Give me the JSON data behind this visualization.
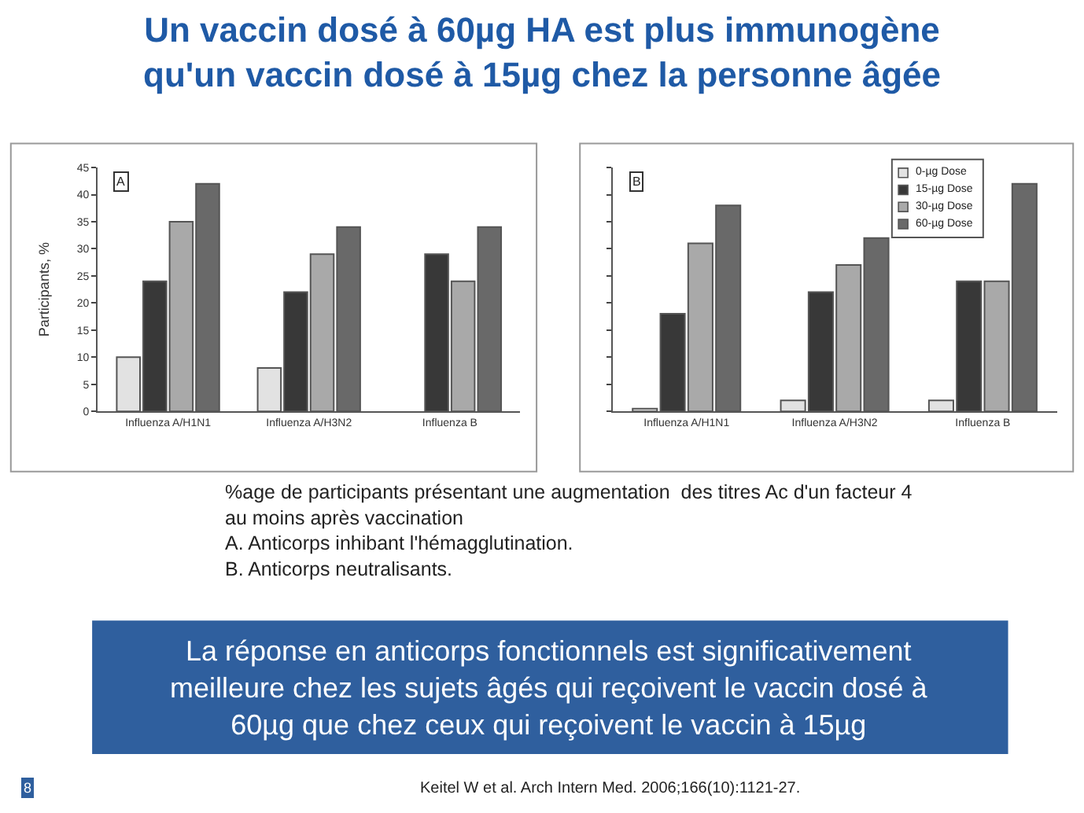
{
  "chart_data": [
    {
      "type": "bar",
      "title": "Un vaccin dosé à 60µg HA est plus immunogène\nqu'un vaccin dosé à 15µg chez la personne âgée",
      "ylabel": "Participants, %",
      "categories": [
        "Influenza A/H1N1",
        "Influenza A/H3N2",
        "Influenza B"
      ],
      "series": [
        {
          "color": "#e2e2e2",
          "values": [
            10,
            8,
            null
          ]
        },
        {
          "color": "#383838",
          "values": [
            24,
            22,
            29
          ]
        },
        {
          "color": "#a9a9a9",
          "values": [
            35,
            29,
            24
          ]
        },
        {
          "color": "#696969",
          "values": [
            42,
            34,
            34
          ]
        }
      ],
      "ylim": [
        0,
        45
      ],
      "yticks": [
        0,
        5,
        10,
        15,
        20,
        25,
        30,
        35,
        40,
        45
      ],
      "grid": false,
      "legend": false,
      "annotations": [
        "A",
        "%age de participants présentant une augmentation  des titres Ac d'un facteur 4\nau moins après vaccination\nA. Anticorps inhibant l'hémagglutination.\nB. Anticorps neutralisants.",
        "La réponse en anticorps fonctionnels est significativement\nmeilleure chez les sujets âgés qui reçoivent le vaccin dosé à\n60µg que chez ceux qui reçoivent le vaccin à 15µg",
        "Keitel W et al. Arch Intern Med. 2006;166(10):1121-27.",
        "8"
      ]
    },
    {
      "type": "bar",
      "categories": [
        "Influenza A/H1N1",
        "Influenza A/H3N2",
        "Influenza B"
      ],
      "series": [
        {
          "name": "0-µg Dose",
          "color": "#e2e2e2",
          "values": [
            0.5,
            2,
            2
          ]
        },
        {
          "name": "15-µg Dose",
          "color": "#383838",
          "values": [
            18,
            22,
            24
          ]
        },
        {
          "name": "30-µg Dose",
          "color": "#a9a9a9",
          "values": [
            31,
            27,
            24
          ]
        },
        {
          "name": "60-µg Dose",
          "color": "#696969",
          "values": [
            38,
            32,
            42
          ]
        }
      ],
      "ylim": [
        0,
        45
      ],
      "yticks": [
        {
          "value": 0,
          "label": null
        },
        {
          "value": 5,
          "label": null
        },
        {
          "value": 10,
          "label": null
        },
        {
          "value": 15,
          "label": null
        },
        {
          "value": 20,
          "label": null
        },
        {
          "value": 25,
          "label": null
        },
        {
          "value": 30,
          "label": null
        },
        {
          "value": 35,
          "label": null
        },
        {
          "value": 40,
          "label": null
        },
        {
          "value": 45,
          "label": null
        }
      ],
      "tick_labels": "x",
      "grid": false,
      "legend": "top right",
      "annotations": [
        "B"
      ]
    }
  ]
}
